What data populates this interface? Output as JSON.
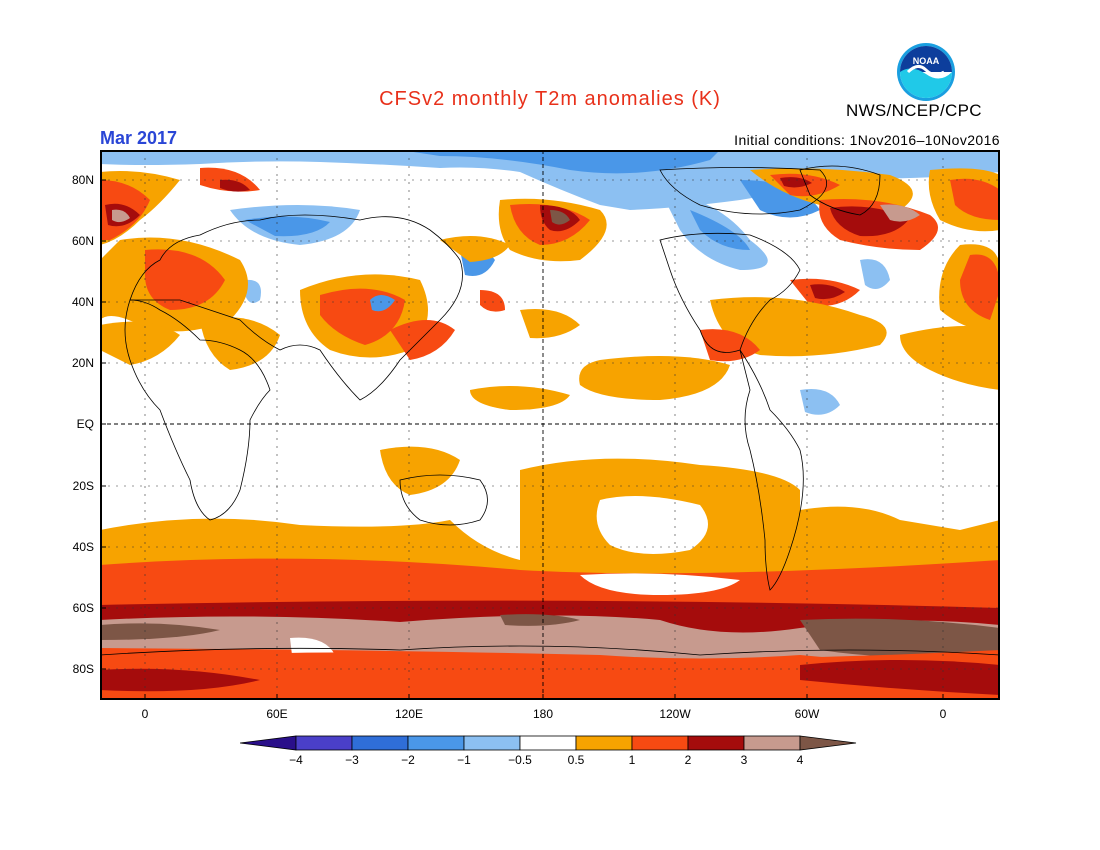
{
  "title": "CFSv2 monthly T2m anomalies (K)",
  "organization": "NWS/NCEP/CPC",
  "logo_text": "NOAA",
  "valid_month": "Mar 2017",
  "initial_conditions": "Initial conditions: 1Nov2016–10Nov2016",
  "map": {
    "lat_labels": [
      "80N",
      "60N",
      "40N",
      "20N",
      "EQ",
      "20S",
      "40S",
      "60S",
      "80S"
    ],
    "lon_labels": [
      "0",
      "60E",
      "120E",
      "180",
      "120W",
      "60W",
      "0"
    ],
    "background_color": "#ffffff"
  },
  "colorbar": {
    "tick_labels": [
      "−4",
      "−3",
      "−2",
      "−1",
      "−0.5",
      "0.5",
      "1",
      "2",
      "3",
      "4"
    ],
    "colors": [
      "#2a0f8a",
      "#4a3fc8",
      "#2f6ed8",
      "#4a97e8",
      "#8cc0f2",
      "#ffffff",
      "#f7a300",
      "#f74a12",
      "#a50c0c",
      "#c79a8e",
      "#7d5646"
    ]
  }
}
